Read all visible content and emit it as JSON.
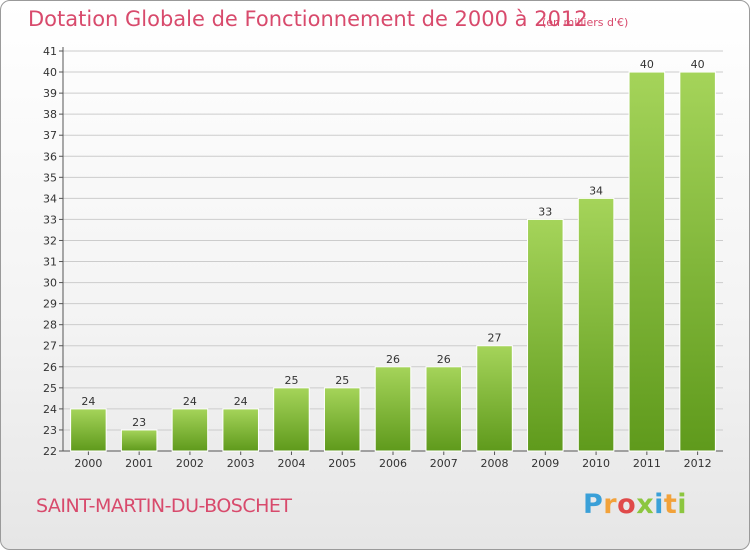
{
  "title": "Dotation Globale de Fonctionnement de 2000 à 2012",
  "unit": "(en milliers d'€)",
  "commune": "SAINT-MARTIN-DU-BOSCHET",
  "logo": "Proxiti",
  "colors": {
    "accent": "#d84a6c",
    "bar_top": "#a5d45a",
    "bar_bottom": "#5f9a1c",
    "grid": "#cccccc"
  },
  "chart_data": {
    "type": "bar",
    "title": "Dotation Globale de Fonctionnement de 2000 à 2012",
    "xlabel": "",
    "ylabel": "",
    "categories": [
      "2000",
      "2001",
      "2002",
      "2003",
      "2004",
      "2005",
      "2006",
      "2007",
      "2008",
      "2009",
      "2010",
      "2011",
      "2012"
    ],
    "values": [
      24,
      23,
      24,
      24,
      25,
      25,
      26,
      26,
      27,
      33,
      34,
      40,
      40
    ],
    "ylim": [
      22,
      41
    ],
    "yticks": [
      22,
      23,
      24,
      25,
      26,
      27,
      28,
      29,
      30,
      31,
      32,
      33,
      34,
      35,
      36,
      37,
      38,
      39,
      40,
      41
    ],
    "grid": true,
    "legend": "none"
  }
}
